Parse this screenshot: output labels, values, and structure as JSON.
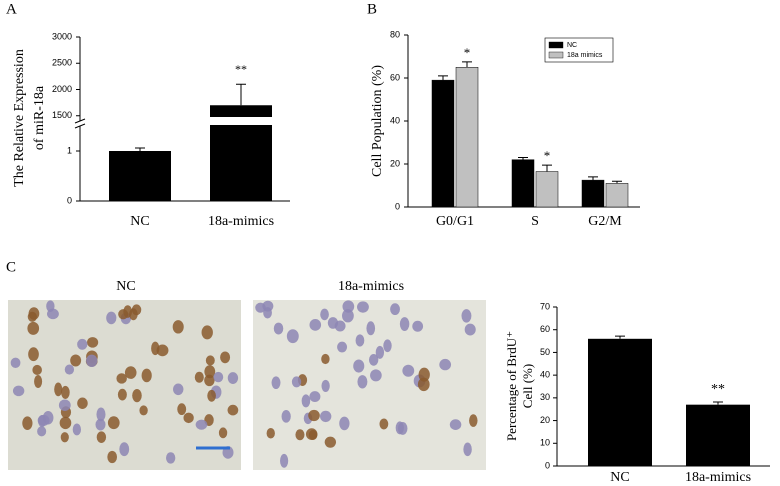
{
  "chart_data": [
    {
      "type": "broken-bar",
      "panel_label": "A",
      "y_label": [
        "The Relative Expression",
        "of miR-18a"
      ],
      "categories": [
        "NC",
        "18a-mimics"
      ],
      "values": [
        1.0,
        1700
      ],
      "errors": [
        0.06,
        400
      ],
      "significance": [
        null,
        "**"
      ],
      "color": "#000000",
      "ylim_lower": [
        0,
        1.5
      ],
      "yticks_lower": [
        0,
        1
      ],
      "ylim_upper": [
        1400,
        3000
      ],
      "yticks_upper": [
        1500,
        2000,
        2500,
        3000
      ]
    },
    {
      "type": "grouped-bar",
      "panel_label": "B",
      "y_label": "Cell Population (%)",
      "categories": [
        "G0/G1",
        "S",
        "G2/M"
      ],
      "series": [
        {
          "name": "NC",
          "color": "#000000",
          "values": [
            59,
            22,
            12.5
          ],
          "errors": [
            2,
            1,
            1.5
          ],
          "significance": [
            null,
            null,
            null
          ]
        },
        {
          "name": "18a mimics",
          "color": "#c0c0c0",
          "values": [
            65,
            16.5,
            11
          ],
          "errors": [
            2.5,
            3,
            1
          ],
          "significance": [
            "*",
            "*",
            null
          ]
        }
      ],
      "ylim": [
        0,
        80
      ],
      "yticks": [
        0,
        20,
        40,
        60,
        80
      ],
      "legend": "top-right"
    },
    {
      "type": "bar",
      "panel_label": "C",
      "y_label": [
        "Percentage of BrdU⁺",
        "Cell  (%)"
      ],
      "micrographs": [
        "NC",
        "18a-mimics"
      ],
      "categories": [
        "NC",
        "18a-mimics"
      ],
      "values": [
        56,
        27
      ],
      "errors": [
        1.2,
        1.2
      ],
      "significance": [
        null,
        "**"
      ],
      "color": "#000000",
      "ylim": [
        0,
        70
      ],
      "yticks": [
        0,
        10,
        20,
        30,
        40,
        50,
        60,
        70
      ]
    }
  ]
}
